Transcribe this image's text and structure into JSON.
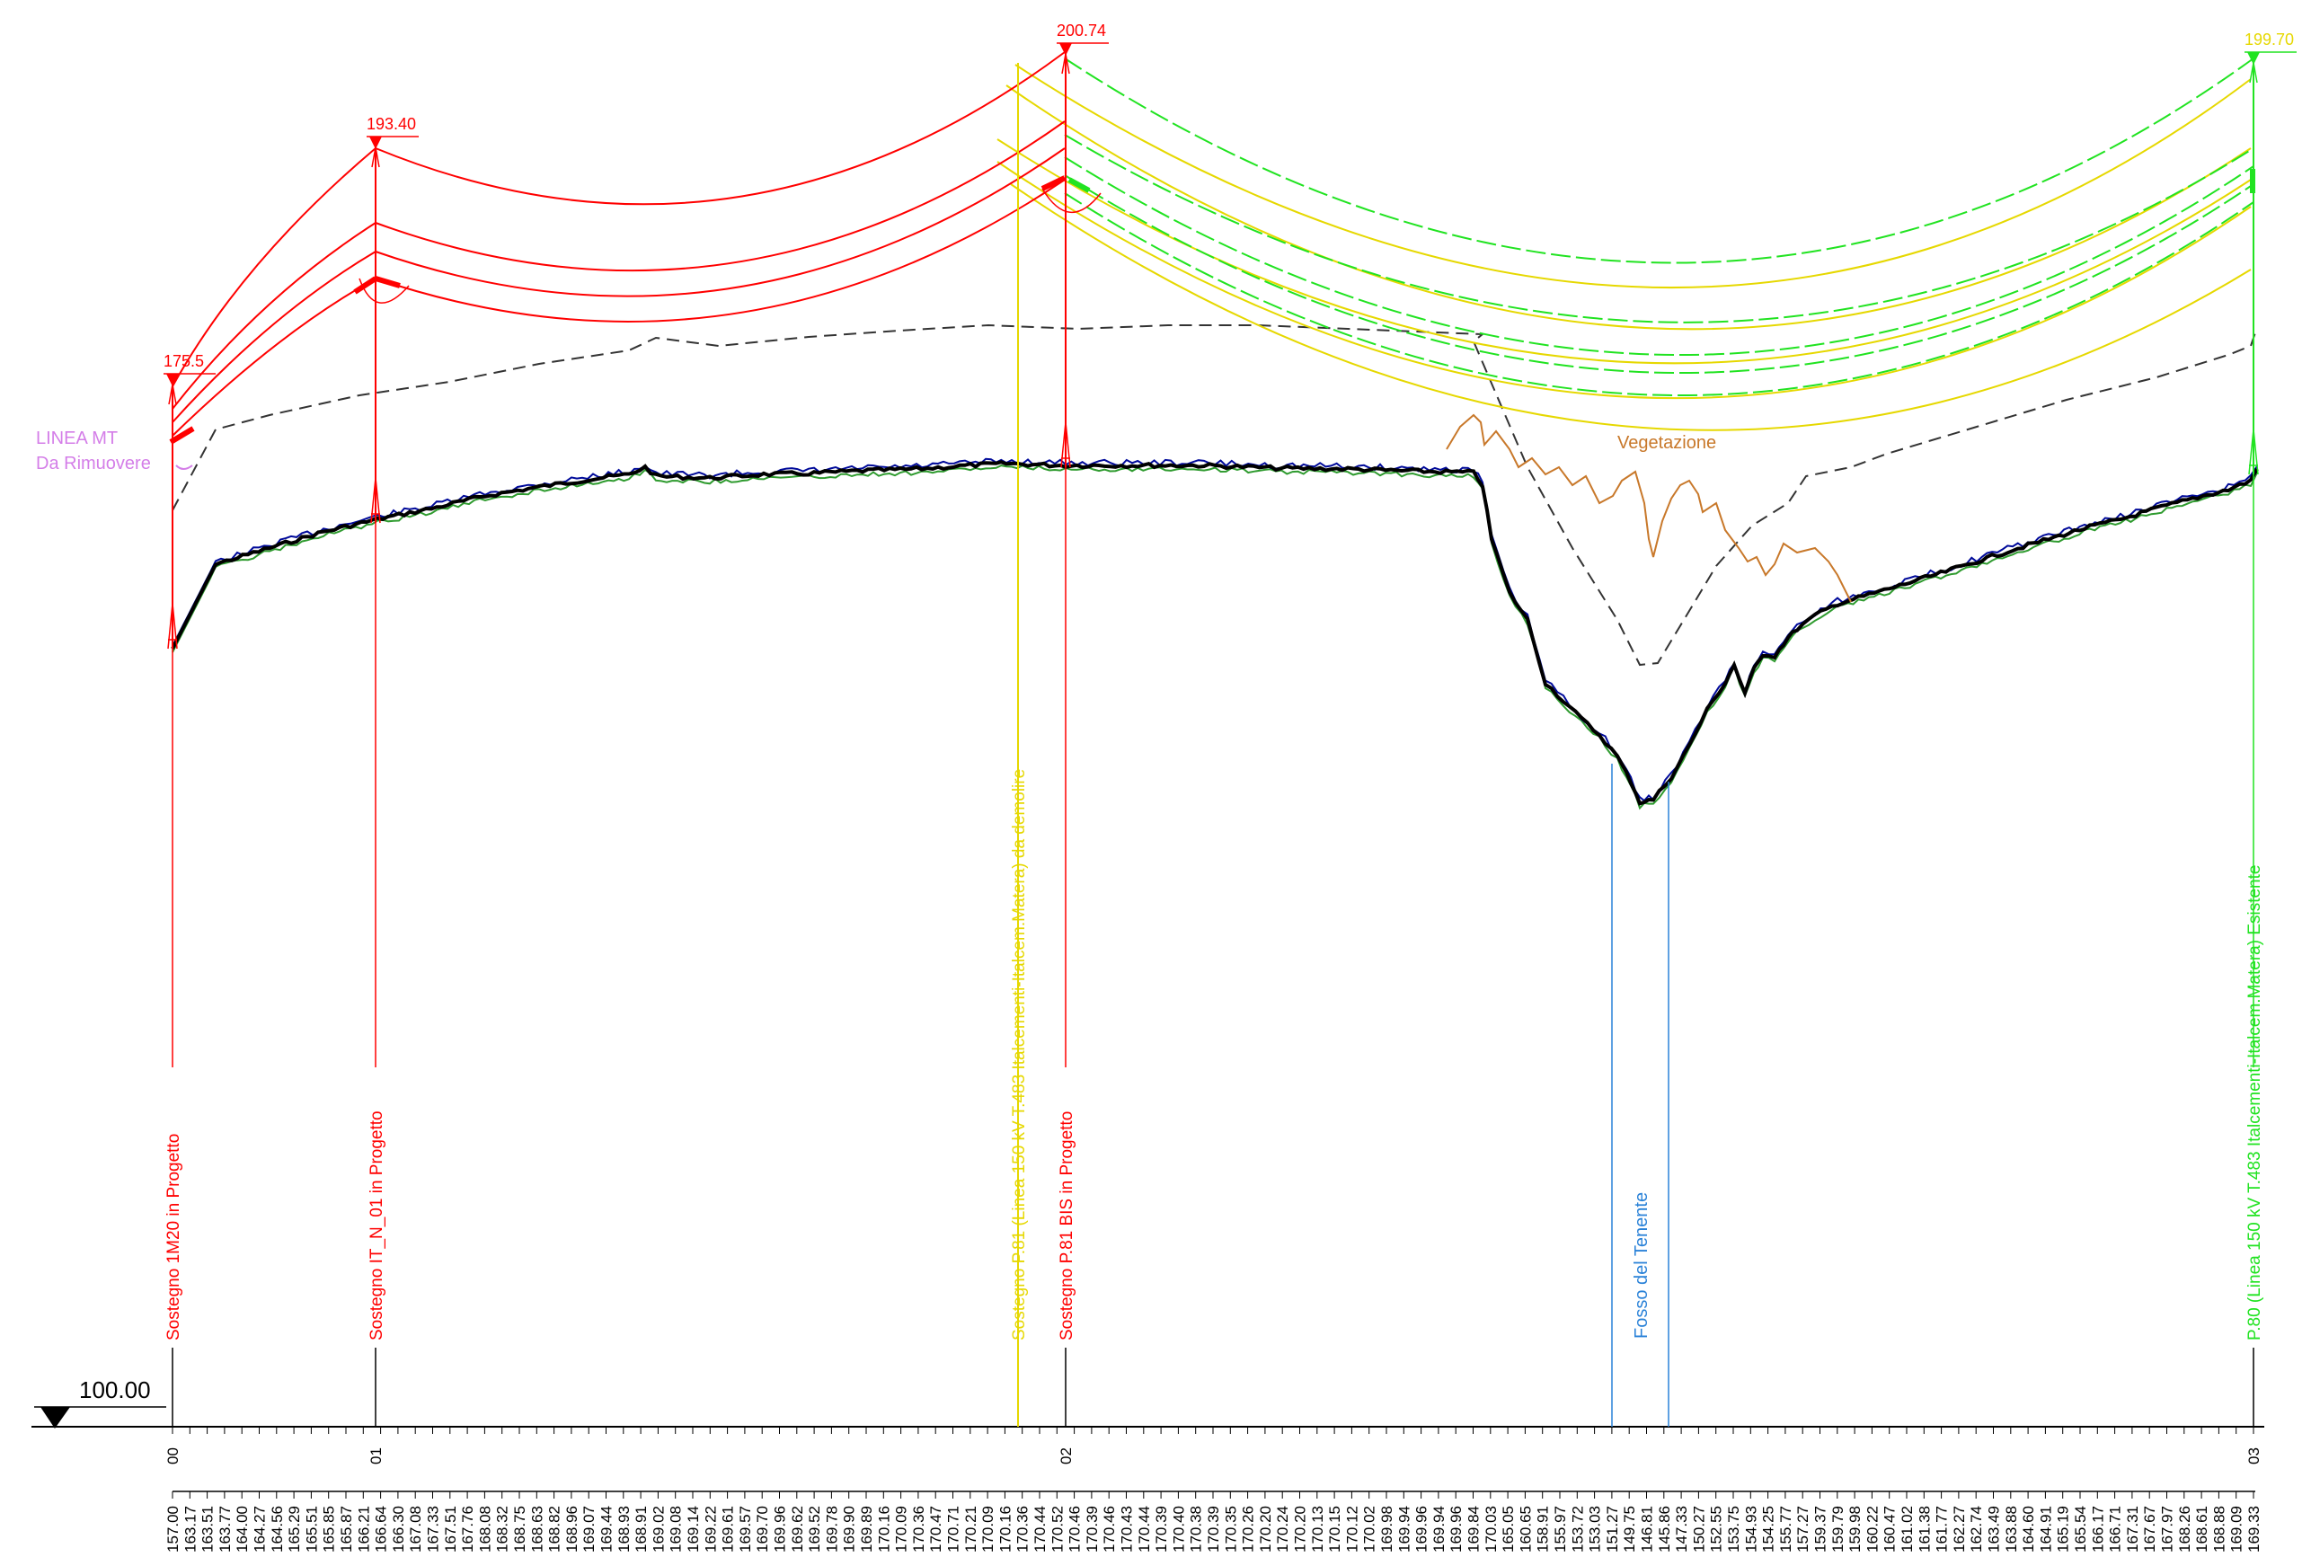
{
  "colors": {
    "red": "#ff0000",
    "yellow": "#e6d800",
    "green": "#21e321",
    "blue": "#2a82d8",
    "violet": "#d47ee8",
    "orange": "#c8782a",
    "ground": "#000000",
    "ground_blue": "#000a9a",
    "ground_green": "#2f9b2f",
    "dashed": "#333333"
  },
  "datum": {
    "label": "100.00",
    "icon": "triangle-down-icon"
  },
  "towers": [
    {
      "id": "00",
      "label": "Sostegno 1M20 in Progetto",
      "height": "175.5",
      "color": "red"
    },
    {
      "id": "01",
      "label": "Sostegno IT_N_01 in Progetto",
      "height": "193.40",
      "color": "red"
    },
    {
      "id": "02",
      "label": "Sostegno P.81 BIS in Progetto",
      "height": "200.74",
      "color": "red"
    },
    {
      "id": "03",
      "label": "P.80  (Linea 150 kV T.483 Italcementi-Italcem.Matera) Esistente",
      "height": "199.70",
      "color": "green"
    }
  ],
  "demolish_tower": {
    "label": "Sostegno P.81  (Linea 150 kV T.483 Italcementi-Italcem.Matera) da demolire"
  },
  "watercourse": {
    "label": "Fosso del Tenente"
  },
  "line_mt": {
    "line1": "LINEA MT",
    "line2": "Da Rimuovere"
  },
  "vegetation": {
    "label": "Vegetazione"
  },
  "elevations": [
    "157.00",
    "163.17",
    "163.51",
    "163.77",
    "164.00",
    "164.27",
    "164.56",
    "165.29",
    "165.51",
    "165.85",
    "165.87",
    "166.21",
    "166.64",
    "166.30",
    "167.08",
    "167.33",
    "167.51",
    "167.76",
    "168.08",
    "168.32",
    "168.75",
    "168.63",
    "168.82",
    "168.96",
    "169.07",
    "169.44",
    "168.93",
    "168.91",
    "169.02",
    "169.08",
    "169.14",
    "169.22",
    "169.61",
    "169.57",
    "169.70",
    "169.96",
    "169.62",
    "169.52",
    "169.78",
    "169.90",
    "169.89",
    "170.16",
    "170.09",
    "170.36",
    "170.47",
    "170.71",
    "170.21",
    "170.09",
    "170.16",
    "170.36",
    "170.44",
    "170.52",
    "170.46",
    "170.39",
    "170.46",
    "170.43",
    "170.44",
    "170.39",
    "170.40",
    "170.38",
    "170.39",
    "170.35",
    "170.26",
    "170.20",
    "170.24",
    "170.20",
    "170.13",
    "170.15",
    "170.12",
    "170.02",
    "169.98",
    "169.94",
    "169.96",
    "169.94",
    "169.96",
    "169.84",
    "170.03",
    "165.05",
    "160.65",
    "158.91",
    "155.97",
    "153.72",
    "153.03",
    "151.27",
    "149.75",
    "146.81",
    "145.86",
    "147.33",
    "150.27",
    "152.55",
    "153.75",
    "154.93",
    "154.25",
    "155.77",
    "157.27",
    "159.37",
    "159.79",
    "159.98",
    "160.22",
    "160.47",
    "161.02",
    "161.38",
    "161.77",
    "162.27",
    "162.74",
    "163.49",
    "163.88",
    "164.60",
    "164.91",
    "165.19",
    "165.54",
    "166.17",
    "166.71",
    "167.31",
    "167.67",
    "167.97",
    "168.26",
    "168.61",
    "168.88",
    "169.09",
    "169.33"
  ]
}
